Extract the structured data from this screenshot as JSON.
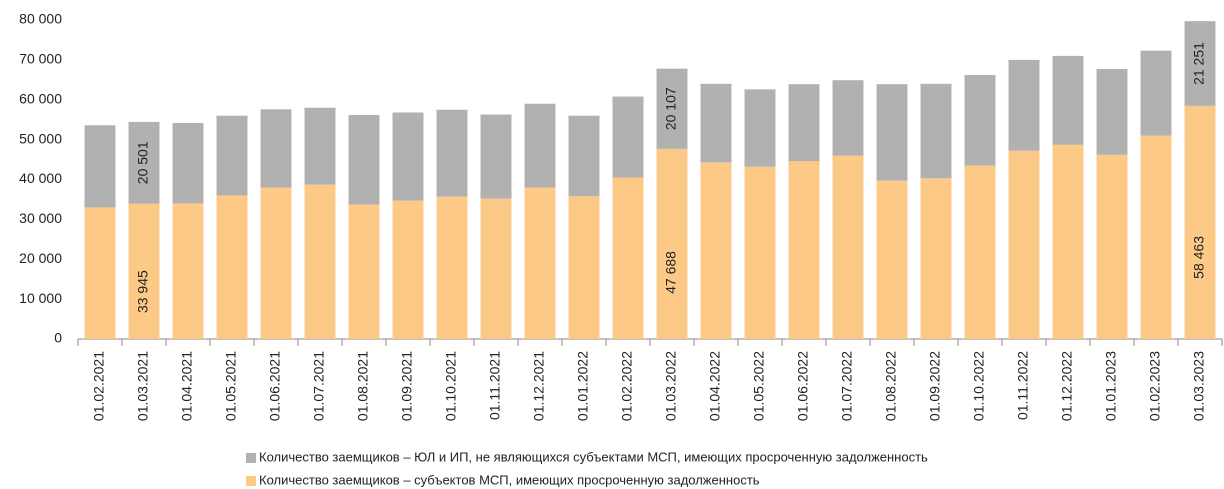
{
  "chart_data": {
    "type": "stacked_bar",
    "categories": [
      "01.02.2021",
      "01.03.2021",
      "01.04.2021",
      "01.05.2021",
      "01.06.2021",
      "01.07.2021",
      "01.08.2021",
      "01.09.2021",
      "01.10.2021",
      "01.11.2021",
      "01.12.2021",
      "01.01.2022",
      "01.02.2022",
      "01.03.2022",
      "01.04.2022",
      "01.05.2022",
      "01.06.2022",
      "01.07.2022",
      "01.08.2022",
      "01.09.2022",
      "01.10.2022",
      "01.11.2022",
      "01.12.2022",
      "01.01.2023",
      "01.02.2023",
      "01.03.2023"
    ],
    "series": [
      {
        "name": "Количество заемщиков – субъектов МСП, имеющих просроченную задолженность",
        "color": "#fdc987",
        "values": [
          33000,
          33945,
          34000,
          36000,
          38000,
          38700,
          33700,
          34700,
          35700,
          35200,
          38000,
          35800,
          40500,
          47688,
          44300,
          43200,
          44600,
          46000,
          39700,
          40300,
          43500,
          47200,
          48700,
          46200,
          51000,
          58463
        ],
        "value_labels": [
          null,
          "33 945",
          null,
          null,
          null,
          null,
          null,
          null,
          null,
          null,
          null,
          null,
          null,
          "47 688",
          null,
          null,
          null,
          null,
          null,
          null,
          null,
          null,
          null,
          null,
          null,
          "58 463"
        ]
      },
      {
        "name": "Количество заемщиков – ЮЛ и ИП, не являющихся субъектами МСП, имеющих просроченную задолженность",
        "color": "#b1b1b1",
        "values": [
          20600,
          20501,
          20200,
          20000,
          19600,
          19300,
          22500,
          22100,
          21800,
          21100,
          21000,
          20200,
          20300,
          20107,
          19700,
          19400,
          19300,
          18900,
          24200,
          23700,
          22700,
          22800,
          22300,
          21500,
          21300,
          21251
        ],
        "value_labels": [
          null,
          "20 501",
          null,
          null,
          null,
          null,
          null,
          null,
          null,
          null,
          null,
          null,
          null,
          "20 107",
          null,
          null,
          null,
          null,
          null,
          null,
          null,
          null,
          null,
          null,
          null,
          "21 251"
        ]
      }
    ],
    "ylim": [
      0,
      80000
    ],
    "yticks": [
      {
        "value": 0,
        "label": "0"
      },
      {
        "value": 10000,
        "label": "10 000"
      },
      {
        "value": 20000,
        "label": "20 000"
      },
      {
        "value": 30000,
        "label": "30 000"
      },
      {
        "value": 40000,
        "label": "40 000"
      },
      {
        "value": 50000,
        "label": "50 000"
      },
      {
        "value": 60000,
        "label": "60 000"
      },
      {
        "value": 70000,
        "label": "70 000"
      },
      {
        "value": 80000,
        "label": "80 000"
      }
    ],
    "grid": false,
    "legend": "bottom"
  }
}
